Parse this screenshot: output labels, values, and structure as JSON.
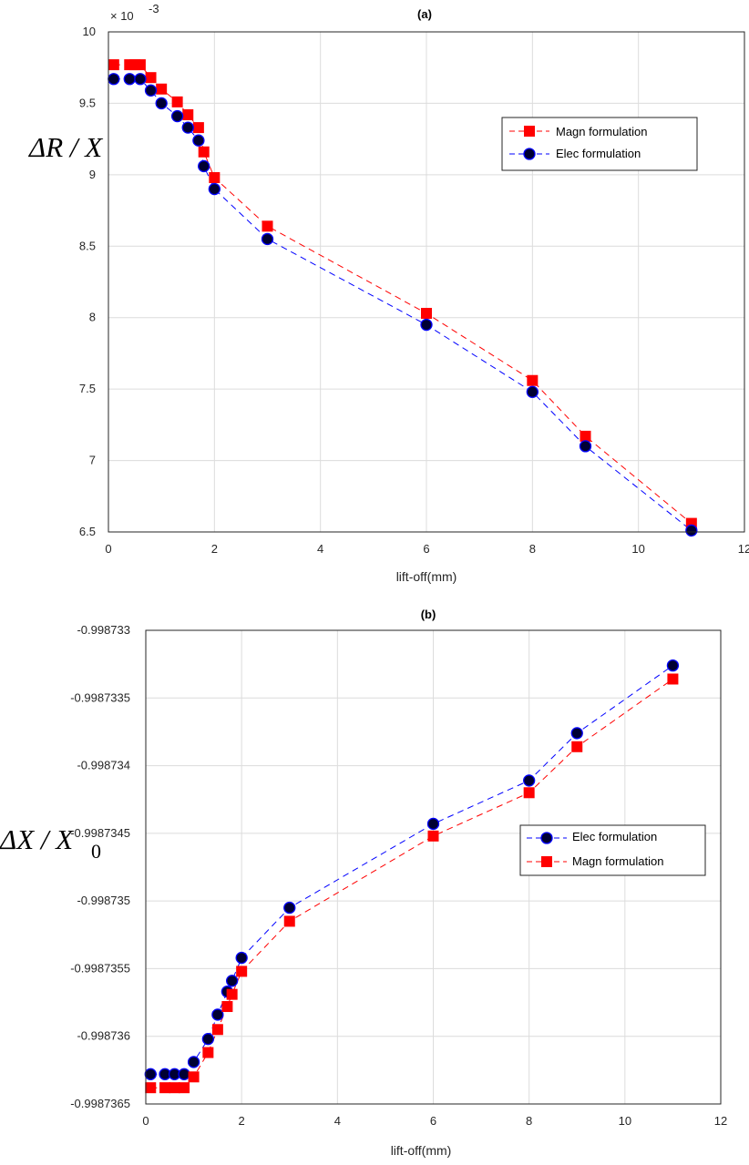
{
  "chart_data": [
    {
      "type": "line",
      "title": "(a)",
      "xlabel": "lift-off(mm)",
      "ylabel": "ΔR / X",
      "y_exponent_label": "× 10",
      "y_exponent": "-3",
      "xlim": [
        0,
        12
      ],
      "ylim": [
        6.5,
        10
      ],
      "x_ticks": [
        "0",
        "2",
        "4",
        "6",
        "8",
        "10",
        "12"
      ],
      "y_ticks": [
        "6.5",
        "7",
        "7.5",
        "8",
        "8.5",
        "9",
        "9.5",
        "10"
      ],
      "grid": true,
      "legend_position": "upper-right",
      "series": [
        {
          "name": "Magn formulation",
          "color": "#ff0000",
          "marker": "square",
          "x": [
            0.1,
            0.4,
            0.5,
            0.6,
            0.8,
            1.0,
            1.3,
            1.5,
            1.7,
            1.8,
            2.0,
            3.0,
            6.0,
            8.0,
            9.0,
            11.0
          ],
          "y": [
            9.77,
            9.77,
            9.77,
            9.77,
            9.68,
            9.6,
            9.51,
            9.42,
            9.33,
            9.16,
            8.98,
            8.64,
            8.03,
            7.56,
            7.17,
            6.56
          ]
        },
        {
          "name": "Elec formulation",
          "color": "#0000ff",
          "marker": "circle",
          "x": [
            0.1,
            0.4,
            0.6,
            0.8,
            1.0,
            1.3,
            1.5,
            1.7,
            1.8,
            2.0,
            3.0,
            6.0,
            8.0,
            9.0,
            11.0
          ],
          "y": [
            9.67,
            9.67,
            9.67,
            9.59,
            9.5,
            9.41,
            9.33,
            9.24,
            9.06,
            8.9,
            8.55,
            7.95,
            7.48,
            7.1,
            6.51
          ]
        }
      ]
    },
    {
      "type": "line",
      "title": "(b)",
      "xlabel": "lift-off(mm)",
      "ylabel": "ΔX / X",
      "ylabel_subscript": "0",
      "xlim": [
        0,
        12
      ],
      "ylim": [
        -0.9987365,
        -0.998733
      ],
      "x_ticks": [
        "0",
        "2",
        "4",
        "6",
        "8",
        "10",
        "12"
      ],
      "y_ticks": [
        "-0.9987365",
        "-0.998736",
        "-0.9987355",
        "-0.998735",
        "-0.9987345",
        "-0.998734",
        "-0.9987335",
        "-0.998733"
      ],
      "grid": true,
      "legend_position": "right",
      "series": [
        {
          "name": "Elec formulation",
          "color": "#0000ff",
          "marker": "circle",
          "x": [
            0.1,
            0.4,
            0.6,
            0.8,
            1.0,
            1.3,
            1.5,
            1.7,
            1.8,
            2.0,
            3.0,
            6.0,
            8.0,
            9.0,
            11.0
          ],
          "y": [
            -0.99873628,
            -0.99873628,
            -0.99873628,
            -0.99873628,
            -0.99873619,
            -0.99873602,
            -0.99873584,
            -0.99873567,
            -0.99873559,
            -0.99873542,
            -0.99873505,
            -0.99873443,
            -0.99873411,
            -0.99873376,
            -0.99873326
          ]
        },
        {
          "name": "Magn formulation",
          "color": "#ff0000",
          "marker": "square",
          "x": [
            0.1,
            0.4,
            0.6,
            0.8,
            1.0,
            1.3,
            1.5,
            1.7,
            1.8,
            2.0,
            3.0,
            6.0,
            8.0,
            9.0,
            11.0
          ],
          "y": [
            -0.99873638,
            -0.99873638,
            -0.99873638,
            -0.99873638,
            -0.9987363,
            -0.99873612,
            -0.99873595,
            -0.99873578,
            -0.99873569,
            -0.99873552,
            -0.99873515,
            -0.99873452,
            -0.9987342,
            -0.99873386,
            -0.99873336
          ]
        }
      ]
    }
  ]
}
